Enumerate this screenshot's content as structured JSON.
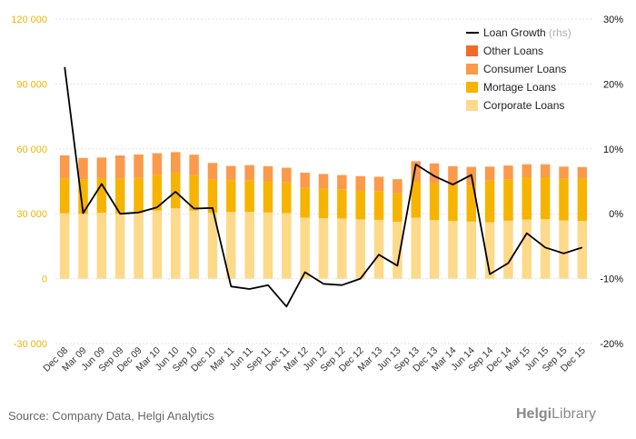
{
  "chart_data": {
    "type": "bar",
    "categories": [
      "Dec 08",
      "Mar 09",
      "Jun 09",
      "Sep 09",
      "Dec 09",
      "Mar 10",
      "Jun 10",
      "Sep 10",
      "Dec 10",
      "Mar 11",
      "Jun 11",
      "Sep 11",
      "Dec 11",
      "Mar 12",
      "Jun 12",
      "Sep 12",
      "Dec 12",
      "Mar 13",
      "Jun 13",
      "Sep 13",
      "Dec 13",
      "Mar 14",
      "Jun 14",
      "Sep 14",
      "Dec 14",
      "Mar 15",
      "Jun 15",
      "Sep 15",
      "Dec 15"
    ],
    "series": [
      {
        "name": "Corporate Loans",
        "axis": "left",
        "stack": true,
        "color": "#fdd98a",
        "values": [
          30200,
          30000,
          30500,
          30100,
          30300,
          31500,
          32500,
          31500,
          30500,
          30800,
          30900,
          30600,
          30300,
          28200,
          28000,
          27800,
          27400,
          27200,
          26300,
          28200,
          27100,
          26700,
          26400,
          26100,
          26800,
          27300,
          27500,
          26900,
          26700
        ]
      },
      {
        "name": "Mortage Loans",
        "axis": "left",
        "stack": true,
        "color": "#f6b400",
        "values": [
          16000,
          16000,
          16000,
          16200,
          16300,
          16500,
          16500,
          16300,
          15200,
          14800,
          14600,
          14400,
          14200,
          13800,
          13600,
          13500,
          13400,
          13300,
          13200,
          16800,
          16900,
          16600,
          16600,
          19200,
          19200,
          19600,
          19400,
          19300,
          19600
        ]
      },
      {
        "name": "Consumer Loans",
        "axis": "left",
        "stack": true,
        "color": "#fb9a4b",
        "values": [
          10800,
          9800,
          9500,
          10000,
          10800,
          10000,
          9500,
          9500,
          7800,
          6500,
          7000,
          7000,
          6800,
          7000,
          6800,
          6600,
          6600,
          6600,
          6500,
          9300,
          9300,
          8700,
          8700,
          6500,
          6300,
          6000,
          6000,
          5600,
          5300
        ]
      },
      {
        "name": "Other Loans",
        "axis": "left",
        "stack": true,
        "color": "#f26a24",
        "values": [
          0,
          0,
          0,
          500,
          0,
          0,
          0,
          0,
          0,
          0,
          0,
          0,
          0,
          0,
          0,
          0,
          0,
          0,
          0,
          0,
          0,
          0,
          0,
          0,
          0,
          0,
          0,
          0,
          0
        ]
      },
      {
        "name": "Loan Growth",
        "axis": "right",
        "type": "line",
        "color": "#000000",
        "values": [
          22.6,
          0.1,
          4.6,
          0.0,
          0.2,
          1.0,
          3.4,
          0.8,
          0.9,
          -11.2,
          -11.6,
          -11.0,
          -14.3,
          -9.0,
          -10.8,
          -11.0,
          -10.0,
          -6.3,
          -8.0,
          7.6,
          5.8,
          4.5,
          6.0,
          -9.3,
          -7.6,
          -3.0,
          -5.2,
          -6.1,
          -5.2
        ]
      }
    ],
    "y_left": {
      "ylim": [
        -30000,
        120000
      ],
      "ticks": [
        -30000,
        0,
        30000,
        60000,
        90000,
        120000
      ],
      "tick_labels": [
        "-30 000",
        "0",
        "30 000",
        "60 000",
        "90 000",
        "120 000"
      ],
      "tick_color": "#f0b400"
    },
    "y_right": {
      "ylim": [
        -20,
        30
      ],
      "ticks": [
        -20,
        -10,
        0,
        10,
        20,
        30
      ],
      "tick_labels": [
        "-20%",
        "-10%",
        "0%",
        "10%",
        "20%",
        "30%"
      ]
    },
    "grid": true,
    "legend": {
      "placement": "top-right",
      "items": [
        {
          "label": "Loan Growth",
          "suffix": "(rhs)",
          "marker": "line",
          "color": "#000000"
        },
        {
          "label": "Other Loans",
          "marker": "square",
          "color": "#f26a24"
        },
        {
          "label": "Consumer Loans",
          "marker": "square",
          "color": "#fb9a4b"
        },
        {
          "label": "Mortage Loans",
          "marker": "square",
          "color": "#f6b400"
        },
        {
          "label": "Corporate Loans",
          "marker": "square",
          "color": "#fdd98a"
        }
      ]
    }
  },
  "footer": {
    "source": "Source: Company Data, Helgi Analytics",
    "brand_bold": "Helgi",
    "brand_light": "Library"
  }
}
